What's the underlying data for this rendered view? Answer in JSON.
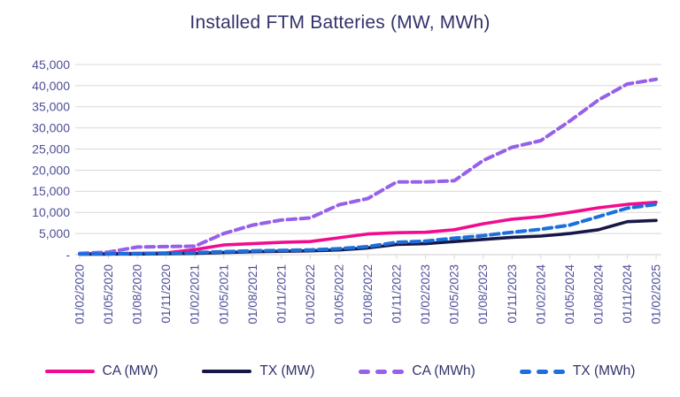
{
  "title": "Installed FTM Batteries (MW, MWh)",
  "colors": {
    "title_text": "#32326B",
    "axis_text": "#4E4E99",
    "gridline": "#D8D8D8",
    "ca_mw": "#F10C8E",
    "tx_mw": "#181848",
    "ca_mwh": "#9760EA",
    "tx_mwh": "#1B70DD"
  },
  "y_axis": {
    "tick_labels": [
      "-",
      "5,000",
      "10,000",
      "15,000",
      "20,000",
      "25,000",
      "30,000",
      "35,000",
      "40,000",
      "45,000"
    ]
  },
  "legend": {
    "items": [
      {
        "label": "CA (MW)",
        "key": "ca_mw",
        "dash": false
      },
      {
        "label": "TX (MW)",
        "key": "tx_mw",
        "dash": false
      },
      {
        "label": "CA (MWh)",
        "key": "ca_mwh",
        "dash": true
      },
      {
        "label": "TX (MWh)",
        "key": "tx_mwh",
        "dash": true
      }
    ]
  },
  "chart_data": {
    "type": "line",
    "title": "Installed FTM Batteries (MW, MWh)",
    "x": [
      "01/02/2020",
      "01/05/2020",
      "01/08/2020",
      "01/11/2020",
      "01/02/2021",
      "01/05/2021",
      "01/08/2021",
      "01/11/2021",
      "01/02/2022",
      "01/05/2022",
      "01/08/2022",
      "01/11/2022",
      "01/02/2023",
      "01/05/2023",
      "01/08/2023",
      "01/11/2023",
      "01/02/2024",
      "01/05/2024",
      "01/08/2024",
      "01/11/2024",
      "01/02/2025"
    ],
    "series": [
      {
        "name": "CA (MW)",
        "key": "ca_mw",
        "color": "#F10C8E",
        "dash": false,
        "values": [
          200,
          250,
          300,
          400,
          1200,
          2300,
          2600,
          2900,
          3100,
          4000,
          4900,
          5200,
          5300,
          5900,
          7300,
          8400,
          9000,
          10000,
          11100,
          11900,
          12400
        ]
      },
      {
        "name": "TX (MW)",
        "key": "tx_mw",
        "color": "#181848",
        "dash": false,
        "values": [
          100,
          120,
          150,
          200,
          300,
          500,
          700,
          800,
          900,
          1100,
          1600,
          2400,
          2600,
          3100,
          3600,
          4100,
          4400,
          5000,
          5900,
          7800,
          8100
        ]
      },
      {
        "name": "CA (MWh)",
        "key": "ca_mwh",
        "color": "#9760EA",
        "dash": true,
        "values": [
          300,
          600,
          1800,
          1900,
          2000,
          5000,
          7000,
          8200,
          8700,
          11800,
          13300,
          17200,
          17200,
          17500,
          22300,
          25400,
          27000,
          31600,
          36600,
          40400,
          41500
        ]
      },
      {
        "name": "TX (MWh)",
        "key": "tx_mwh",
        "color": "#1B70DD",
        "dash": true,
        "values": [
          150,
          180,
          250,
          350,
          500,
          700,
          900,
          1000,
          1100,
          1400,
          1900,
          2900,
          3200,
          3900,
          4500,
          5300,
          6000,
          7000,
          9000,
          11000,
          11900
        ]
      }
    ],
    "ylim": [
      0,
      45000
    ],
    "y_tick_step": 5000,
    "grid": "horizontal",
    "legend_position": "bottom"
  }
}
